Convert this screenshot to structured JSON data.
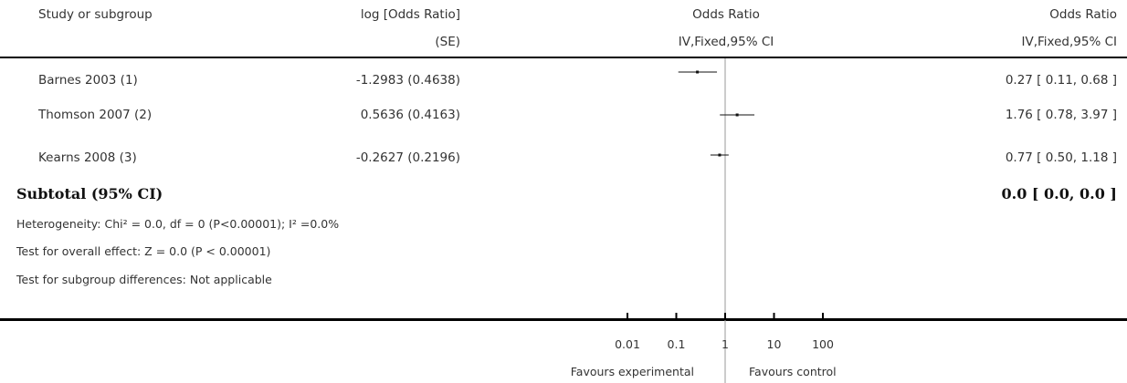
{
  "header": {
    "study_col": "Study or subgroup",
    "effect_col_line1": "log [Odds Ratio]",
    "effect_col_line2": "(SE)",
    "plot_col_line1": "Odds Ratio",
    "plot_col_line2": "IV,Fixed,95% CI",
    "ci_col_line1": "Odds Ratio",
    "ci_col_line2": "IV,Fixed,95% CI"
  },
  "chart_data": {
    "type": "forest",
    "scale": "log",
    "x_ticks": [
      0.01,
      0.1,
      1,
      10,
      100
    ],
    "x_tick_labels": [
      "0.01",
      "0.1",
      "1",
      "10",
      "100"
    ],
    "null_value": 1,
    "studies": [
      {
        "name": "Barnes 2003 (1)",
        "log_or_se": "-1.2983 (0.4638)",
        "or": 0.27,
        "ci_low": 0.11,
        "ci_high": 0.68,
        "ci_text": "0.27 [ 0.11, 0.68 ]"
      },
      {
        "name": "Thomson 2007 (2)",
        "log_or_se": "0.5636 (0.4163)",
        "or": 1.76,
        "ci_low": 0.78,
        "ci_high": 3.97,
        "ci_text": "1.76 [ 0.78, 3.97 ]"
      },
      {
        "name": "Kearns 2008 (3)",
        "log_or_se": "-0.2627 (0.2196)",
        "or": 0.77,
        "ci_low": 0.5,
        "ci_high": 1.18,
        "ci_text": "0.77 [ 0.50, 1.18 ]"
      }
    ],
    "subtotal": {
      "label": "Subtotal (95% CI)",
      "ci_text": "0.0 [ 0.0, 0.0 ]"
    },
    "notes": {
      "heterogeneity": "Heterogeneity: Chi² = 0.0, df = 0 (P<0.00001); I² =0.0%",
      "overall_effect": "Test for overall effect: Z = 0.0 (P < 0.00001)",
      "subgroup_diff": "Test for subgroup differences: Not applicable"
    },
    "favours_left": "Favours experimental",
    "favours_right": "Favours control"
  }
}
